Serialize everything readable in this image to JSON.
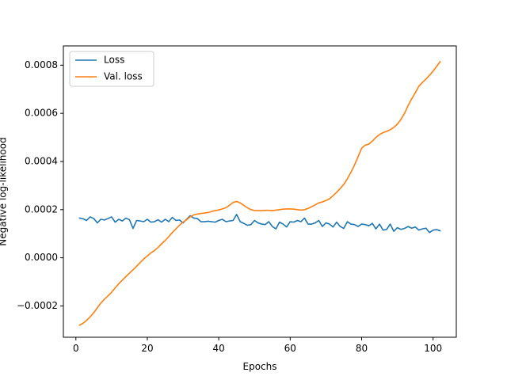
{
  "chart_data": {
    "type": "line",
    "title": "",
    "xlabel": "Epochs",
    "ylabel": "Negative log-likelihood",
    "xlim": [
      -3.5,
      106.5
    ],
    "ylim": [
      -0.00033,
      0.00088
    ],
    "xticks": [
      0,
      20,
      40,
      60,
      80,
      100
    ],
    "xtick_labels": [
      "0",
      "20",
      "40",
      "60",
      "80",
      "100"
    ],
    "yticks": [
      -0.0002,
      0.0,
      0.0002,
      0.0004,
      0.0006,
      0.0008
    ],
    "ytick_labels": [
      "−0.0002",
      "0.0000",
      "0.0002",
      "0.0004",
      "0.0006",
      "0.0008"
    ],
    "grid": false,
    "legend_position": "top-left",
    "series": [
      {
        "name": "Loss",
        "color": "#1f77b4",
        "x": [
          1,
          2,
          3,
          4,
          5,
          6,
          7,
          8,
          9,
          10,
          11,
          12,
          13,
          14,
          15,
          16,
          17,
          18,
          19,
          20,
          21,
          22,
          23,
          24,
          25,
          26,
          27,
          28,
          29,
          30,
          31,
          32,
          33,
          34,
          35,
          36,
          37,
          38,
          39,
          40,
          41,
          42,
          43,
          44,
          45,
          46,
          47,
          48,
          49,
          50,
          51,
          52,
          53,
          54,
          55,
          56,
          57,
          58,
          59,
          60,
          61,
          62,
          63,
          64,
          65,
          66,
          67,
          68,
          69,
          70,
          71,
          72,
          73,
          74,
          75,
          76,
          77,
          78,
          79,
          80,
          81,
          82,
          83,
          84,
          85,
          86,
          87,
          88,
          89,
          90,
          91,
          92,
          93,
          94,
          95,
          96,
          97,
          98,
          99,
          100,
          101,
          102
        ],
        "values": [
          0.000165,
          0.000162,
          0.000155,
          0.00017,
          0.000163,
          0.000145,
          0.00016,
          0.000157,
          0.000163,
          0.00017,
          0.000148,
          0.00016,
          0.000153,
          0.000165,
          0.000158,
          0.000122,
          0.000155,
          0.000153,
          0.00015,
          0.00016,
          0.000148,
          0.00015,
          0.000158,
          0.000148,
          0.00016,
          0.00015,
          0.000168,
          0.000155,
          0.000157,
          0.000145,
          0.00016,
          0.000175,
          0.000165,
          0.000163,
          0.00015,
          0.00015,
          0.000152,
          0.00015,
          0.000148,
          0.000155,
          0.00016,
          0.00015,
          0.000153,
          0.000155,
          0.00018,
          0.00015,
          0.000143,
          0.000135,
          0.000138,
          0.000155,
          0.000145,
          0.00014,
          0.000138,
          0.00015,
          0.00013,
          0.00012,
          0.000148,
          0.00014,
          0.000128,
          0.00015,
          0.000148,
          0.000155,
          0.00015,
          0.000165,
          0.00014,
          0.00014,
          0.000145,
          0.000155,
          0.00013,
          0.000145,
          0.00014,
          0.000128,
          0.000148,
          0.00013,
          0.000122,
          0.00015,
          0.00014,
          0.000138,
          0.00013,
          0.00014,
          0.000138,
          0.000133,
          0.000143,
          0.00012,
          0.00014,
          0.000115,
          0.000118,
          0.00014,
          0.00011,
          0.000125,
          0.000118,
          0.000122,
          0.00013,
          0.000123,
          0.000128,
          0.000115,
          0.00012,
          0.000123,
          0.000105,
          0.000115,
          0.000117,
          0.000112
        ]
      },
      {
        "name": "Val. loss",
        "color": "#ff7f0e",
        "x": [
          1,
          2,
          3,
          4,
          5,
          6,
          7,
          8,
          9,
          10,
          11,
          12,
          13,
          14,
          15,
          16,
          17,
          18,
          19,
          20,
          21,
          22,
          23,
          24,
          25,
          26,
          27,
          28,
          29,
          30,
          31,
          32,
          33,
          34,
          35,
          36,
          37,
          38,
          39,
          40,
          41,
          42,
          43,
          44,
          45,
          46,
          47,
          48,
          49,
          50,
          51,
          52,
          53,
          54,
          55,
          56,
          57,
          58,
          59,
          60,
          61,
          62,
          63,
          64,
          65,
          66,
          67,
          68,
          69,
          70,
          71,
          72,
          73,
          74,
          75,
          76,
          77,
          78,
          79,
          80,
          81,
          82,
          83,
          84,
          85,
          86,
          87,
          88,
          89,
          90,
          91,
          92,
          93,
          94,
          95,
          96,
          97,
          98,
          99,
          100,
          101,
          102
        ],
        "values": [
          -0.00028,
          -0.000272,
          -0.00026,
          -0.000245,
          -0.000228,
          -0.000208,
          -0.000188,
          -0.000172,
          -0.000158,
          -0.000143,
          -0.000125,
          -0.000108,
          -9.3e-05,
          -7.8e-05,
          -6.4e-05,
          -5e-05,
          -3.5e-05,
          -2e-05,
          -5e-06,
          8e-06,
          2e-05,
          3e-05,
          4.3e-05,
          5.8e-05,
          7.2e-05,
          8.8e-05,
          0.000105,
          0.00012,
          0.000135,
          0.000148,
          0.000158,
          0.00017,
          0.000178,
          0.000182,
          0.000184,
          0.000186,
          0.000188,
          0.000192,
          0.000196,
          0.000199,
          0.000203,
          0.000208,
          0.000218,
          0.00023,
          0.000234,
          0.000228,
          0.000218,
          0.000208,
          0.0002,
          0.000196,
          0.000196,
          0.000196,
          0.000197,
          0.000197,
          0.000196,
          0.000198,
          0.0002,
          0.000202,
          0.000203,
          0.000203,
          0.000202,
          0.0002,
          0.000198,
          0.0002,
          0.000205,
          0.000212,
          0.00022,
          0.000228,
          0.000232,
          0.000238,
          0.000245,
          0.000258,
          0.000272,
          0.000288,
          0.000305,
          0.000328,
          0.000355,
          0.000385,
          0.00042,
          0.000455,
          0.000468,
          0.000472,
          0.000485,
          0.0005,
          0.000512,
          0.00052,
          0.000525,
          0.000532,
          0.000542,
          0.000555,
          0.000575,
          0.0006,
          0.000632,
          0.00066,
          0.000685,
          0.000712,
          0.000728,
          0.000742,
          0.000758,
          0.000775,
          0.000795,
          0.000815
        ]
      }
    ]
  }
}
